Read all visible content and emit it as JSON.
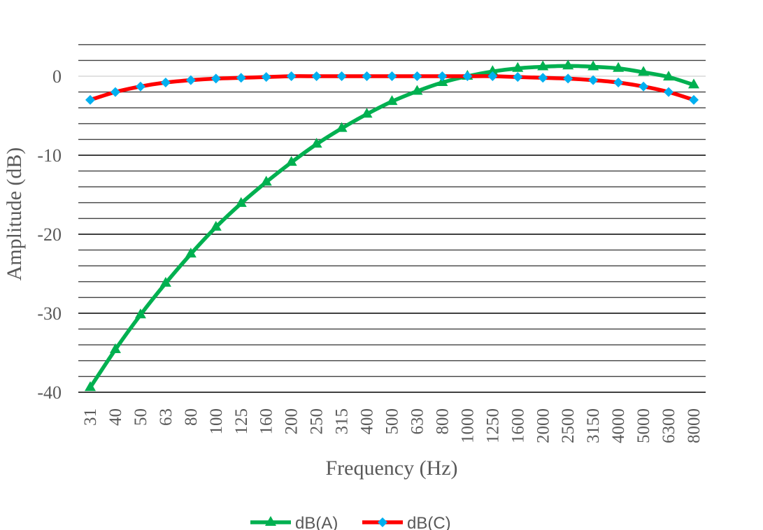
{
  "chart_data": {
    "type": "line",
    "xlabel": "Frequency (Hz)",
    "ylabel": "Amplitude (dB)",
    "categories": [
      "31",
      "40",
      "50",
      "63",
      "80",
      "100",
      "125",
      "160",
      "200",
      "250",
      "315",
      "400",
      "500",
      "630",
      "800",
      "1000",
      "1250",
      "1600",
      "2000",
      "2500",
      "3150",
      "4000",
      "5000",
      "6300",
      "8000"
    ],
    "ylim": [
      -40,
      4
    ],
    "y_ticks": [
      0,
      -10,
      -20,
      -30,
      -40
    ],
    "grid": true,
    "legend_position": "bottom",
    "series": [
      {
        "name": "dB(A)",
        "color": "#00B050",
        "marker": "triangle",
        "values": [
          -39.4,
          -34.6,
          -30.2,
          -26.2,
          -22.5,
          -19.1,
          -16.1,
          -13.4,
          -10.9,
          -8.6,
          -6.6,
          -4.8,
          -3.2,
          -1.9,
          -0.8,
          0.0,
          0.6,
          1.0,
          1.2,
          1.3,
          1.2,
          1.0,
          0.5,
          -0.1,
          -1.1
        ]
      },
      {
        "name": "dB(C)",
        "color": "#FF0000",
        "marker_color": "#00B0F0",
        "marker": "diamond",
        "values": [
          -3.0,
          -2.0,
          -1.3,
          -0.8,
          -0.5,
          -0.3,
          -0.2,
          -0.1,
          0.0,
          0.0,
          0.0,
          0.0,
          0.0,
          0.0,
          0.0,
          0.0,
          0.0,
          -0.1,
          -0.2,
          -0.3,
          -0.5,
          -0.8,
          -1.3,
          -2.0,
          -3.0
        ]
      }
    ]
  }
}
